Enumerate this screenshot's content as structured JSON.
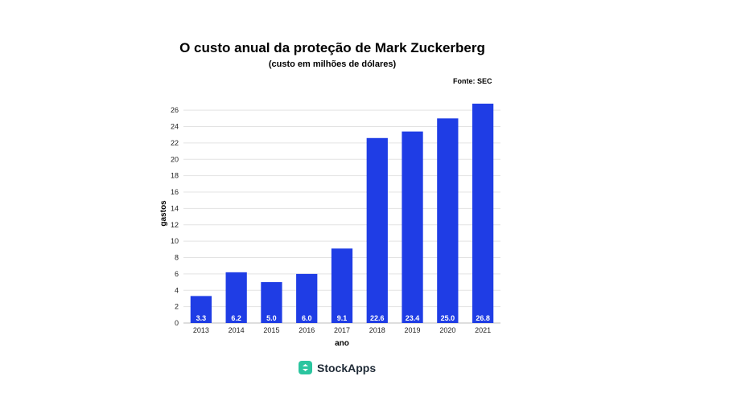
{
  "chart_data": {
    "type": "bar",
    "title": "O custo anual da proteção de Mark Zuckerberg",
    "subtitle": "(custo em milhões de dólares)",
    "source": "Fonte: SEC",
    "xlabel": "ano",
    "ylabel": "gastos",
    "categories": [
      "2013",
      "2014",
      "2015",
      "2016",
      "2017",
      "2018",
      "2019",
      "2020",
      "2021"
    ],
    "values": [
      3.3,
      6.2,
      5.0,
      6.0,
      9.1,
      22.6,
      23.4,
      25.0,
      26.8
    ],
    "value_labels": [
      "3.3",
      "6.2",
      "5.0",
      "6.0",
      "9.1",
      "22.6",
      "23.4",
      "25.0",
      "26.8"
    ],
    "yticks": [
      "0",
      "2",
      "4",
      "6",
      "8",
      "10",
      "12",
      "14",
      "16",
      "18",
      "20",
      "22",
      "24",
      "26"
    ],
    "ylim": [
      0,
      26.8
    ],
    "grid": true,
    "bar_color": "#1f3de5",
    "label_color": "#ffffff"
  },
  "brand": {
    "name": "StockApps",
    "icon": "stockapps-logo-icon",
    "color": "#2bc59f"
  }
}
